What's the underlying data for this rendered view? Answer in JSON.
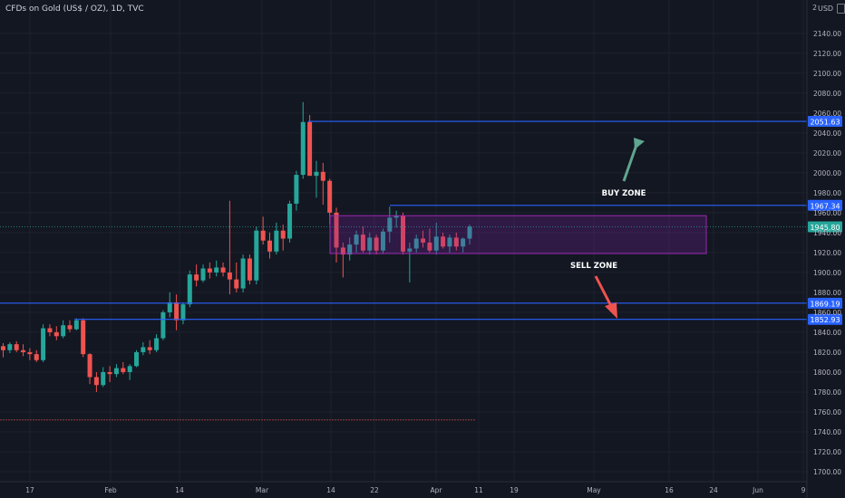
{
  "header": {
    "title": "CFDs on Gold (US$ / OZ), 1D, TVC",
    "currency": "USD",
    "corner_value": "2"
  },
  "colors": {
    "bg": "#131722",
    "up": "#26a69a",
    "down": "#ef5350",
    "line": "#2962ff",
    "box": "#7b1fa2",
    "text": "#b2b5be"
  },
  "chart_data": {
    "type": "candlestick",
    "ylim": [
      1690,
      2168
    ],
    "y_ticks": [
      1700,
      1720,
      1740,
      1760,
      1780,
      1800,
      1820,
      1840,
      1860,
      1880,
      1900,
      1920,
      1940,
      1960,
      1980,
      2000,
      2020,
      2040,
      2060,
      2080,
      2100,
      2120,
      2140
    ],
    "x_ticks": [
      "17",
      "Feb",
      "14",
      "Mar",
      "14",
      "22",
      "Apr",
      "11",
      "19",
      "May",
      "16",
      "24",
      "Jun",
      "9"
    ],
    "candles": [
      {
        "o": 1826,
        "h": 1829,
        "l": 1815,
        "c": 1822
      },
      {
        "o": 1822,
        "h": 1830,
        "l": 1819,
        "c": 1828
      },
      {
        "o": 1828,
        "h": 1831,
        "l": 1820,
        "c": 1822
      },
      {
        "o": 1822,
        "h": 1828,
        "l": 1816,
        "c": 1820
      },
      {
        "o": 1820,
        "h": 1824,
        "l": 1812,
        "c": 1818
      },
      {
        "o": 1818,
        "h": 1822,
        "l": 1810,
        "c": 1812
      },
      {
        "o": 1812,
        "h": 1848,
        "l": 1810,
        "c": 1844
      },
      {
        "o": 1844,
        "h": 1848,
        "l": 1836,
        "c": 1840
      },
      {
        "o": 1840,
        "h": 1846,
        "l": 1832,
        "c": 1836
      },
      {
        "o": 1836,
        "h": 1852,
        "l": 1834,
        "c": 1847
      },
      {
        "o": 1847,
        "h": 1852,
        "l": 1840,
        "c": 1843
      },
      {
        "o": 1843,
        "h": 1854,
        "l": 1842,
        "c": 1852
      },
      {
        "o": 1852,
        "h": 1854,
        "l": 1815,
        "c": 1818
      },
      {
        "o": 1818,
        "h": 1819,
        "l": 1788,
        "c": 1795
      },
      {
        "o": 1795,
        "h": 1800,
        "l": 1780,
        "c": 1787
      },
      {
        "o": 1787,
        "h": 1805,
        "l": 1785,
        "c": 1800
      },
      {
        "o": 1800,
        "h": 1806,
        "l": 1790,
        "c": 1798
      },
      {
        "o": 1798,
        "h": 1808,
        "l": 1795,
        "c": 1804
      },
      {
        "o": 1804,
        "h": 1810,
        "l": 1798,
        "c": 1800
      },
      {
        "o": 1800,
        "h": 1808,
        "l": 1792,
        "c": 1806
      },
      {
        "o": 1806,
        "h": 1822,
        "l": 1805,
        "c": 1820
      },
      {
        "o": 1820,
        "h": 1830,
        "l": 1817,
        "c": 1825
      },
      {
        "o": 1825,
        "h": 1832,
        "l": 1818,
        "c": 1822
      },
      {
        "o": 1822,
        "h": 1838,
        "l": 1820,
        "c": 1834
      },
      {
        "o": 1834,
        "h": 1862,
        "l": 1832,
        "c": 1860
      },
      {
        "o": 1860,
        "h": 1880,
        "l": 1855,
        "c": 1870
      },
      {
        "o": 1870,
        "h": 1878,
        "l": 1842,
        "c": 1852
      },
      {
        "o": 1852,
        "h": 1870,
        "l": 1848,
        "c": 1868
      },
      {
        "o": 1868,
        "h": 1902,
        "l": 1865,
        "c": 1898
      },
      {
        "o": 1898,
        "h": 1908,
        "l": 1886,
        "c": 1892
      },
      {
        "o": 1892,
        "h": 1908,
        "l": 1890,
        "c": 1904
      },
      {
        "o": 1904,
        "h": 1910,
        "l": 1894,
        "c": 1900
      },
      {
        "o": 1900,
        "h": 1912,
        "l": 1896,
        "c": 1905
      },
      {
        "o": 1905,
        "h": 1910,
        "l": 1896,
        "c": 1900
      },
      {
        "o": 1900,
        "h": 1972,
        "l": 1878,
        "c": 1893
      },
      {
        "o": 1893,
        "h": 1910,
        "l": 1880,
        "c": 1884
      },
      {
        "o": 1884,
        "h": 1918,
        "l": 1880,
        "c": 1914
      },
      {
        "o": 1914,
        "h": 1918,
        "l": 1888,
        "c": 1892
      },
      {
        "o": 1892,
        "h": 1946,
        "l": 1888,
        "c": 1942
      },
      {
        "o": 1942,
        "h": 1956,
        "l": 1928,
        "c": 1932
      },
      {
        "o": 1932,
        "h": 1940,
        "l": 1914,
        "c": 1921
      },
      {
        "o": 1921,
        "h": 1950,
        "l": 1918,
        "c": 1942
      },
      {
        "o": 1942,
        "h": 1948,
        "l": 1922,
        "c": 1934
      },
      {
        "o": 1934,
        "h": 1972,
        "l": 1930,
        "c": 1969
      },
      {
        "o": 1969,
        "h": 2002,
        "l": 1962,
        "c": 1998
      },
      {
        "o": 1998,
        "h": 2071,
        "l": 1994,
        "c": 2051
      },
      {
        "o": 2051,
        "h": 2058,
        "l": 1998,
        "c": 1997
      },
      {
        "o": 1997,
        "h": 2012,
        "l": 1975,
        "c": 2001
      },
      {
        "o": 2001,
        "h": 2010,
        "l": 1968,
        "c": 1992
      },
      {
        "o": 1992,
        "h": 1994,
        "l": 1948,
        "c": 1960
      },
      {
        "o": 1960,
        "h": 1965,
        "l": 1910,
        "c": 1925
      },
      {
        "o": 1925,
        "h": 1930,
        "l": 1895,
        "c": 1918
      },
      {
        "o": 1918,
        "h": 1935,
        "l": 1912,
        "c": 1928
      },
      {
        "o": 1928,
        "h": 1942,
        "l": 1920,
        "c": 1938
      },
      {
        "o": 1938,
        "h": 1946,
        "l": 1920,
        "c": 1922
      },
      {
        "o": 1922,
        "h": 1940,
        "l": 1918,
        "c": 1935
      },
      {
        "o": 1935,
        "h": 1938,
        "l": 1918,
        "c": 1922
      },
      {
        "o": 1922,
        "h": 1944,
        "l": 1919,
        "c": 1941
      },
      {
        "o": 1941,
        "h": 1966,
        "l": 1930,
        "c": 1955
      },
      {
        "o": 1955,
        "h": 1962,
        "l": 1945,
        "c": 1957
      },
      {
        "o": 1957,
        "h": 1960,
        "l": 1918,
        "c": 1921
      },
      {
        "o": 1921,
        "h": 1930,
        "l": 1890,
        "c": 1924
      },
      {
        "o": 1924,
        "h": 1938,
        "l": 1920,
        "c": 1934
      },
      {
        "o": 1934,
        "h": 1942,
        "l": 1925,
        "c": 1930
      },
      {
        "o": 1930,
        "h": 1944,
        "l": 1920,
        "c": 1922
      },
      {
        "o": 1922,
        "h": 1950,
        "l": 1918,
        "c": 1936
      },
      {
        "o": 1936,
        "h": 1940,
        "l": 1924,
        "c": 1926
      },
      {
        "o": 1926,
        "h": 1938,
        "l": 1920,
        "c": 1935
      },
      {
        "o": 1935,
        "h": 1940,
        "l": 1922,
        "c": 1926
      },
      {
        "o": 1926,
        "h": 1935,
        "l": 1920,
        "c": 1934
      },
      {
        "o": 1934,
        "h": 1948,
        "l": 1928,
        "c": 1946
      }
    ],
    "horizontal_lines": [
      {
        "value": 2051.63,
        "label": "2051.63"
      },
      {
        "value": 1967.34,
        "label": "1967.34"
      },
      {
        "value": 1869.19,
        "label": "1869.19"
      },
      {
        "value": 1852.93,
        "label": "1852.93"
      }
    ],
    "last_price": {
      "value": 1945.8,
      "label": "1945.80"
    },
    "zone_box": {
      "y_top": 1957,
      "y_bottom": 1919
    },
    "red_line_value": 1752,
    "annotations": [
      {
        "text": "BUY ZONE",
        "value": 1980
      },
      {
        "text": "SELL ZONE",
        "value": 1907
      }
    ]
  }
}
